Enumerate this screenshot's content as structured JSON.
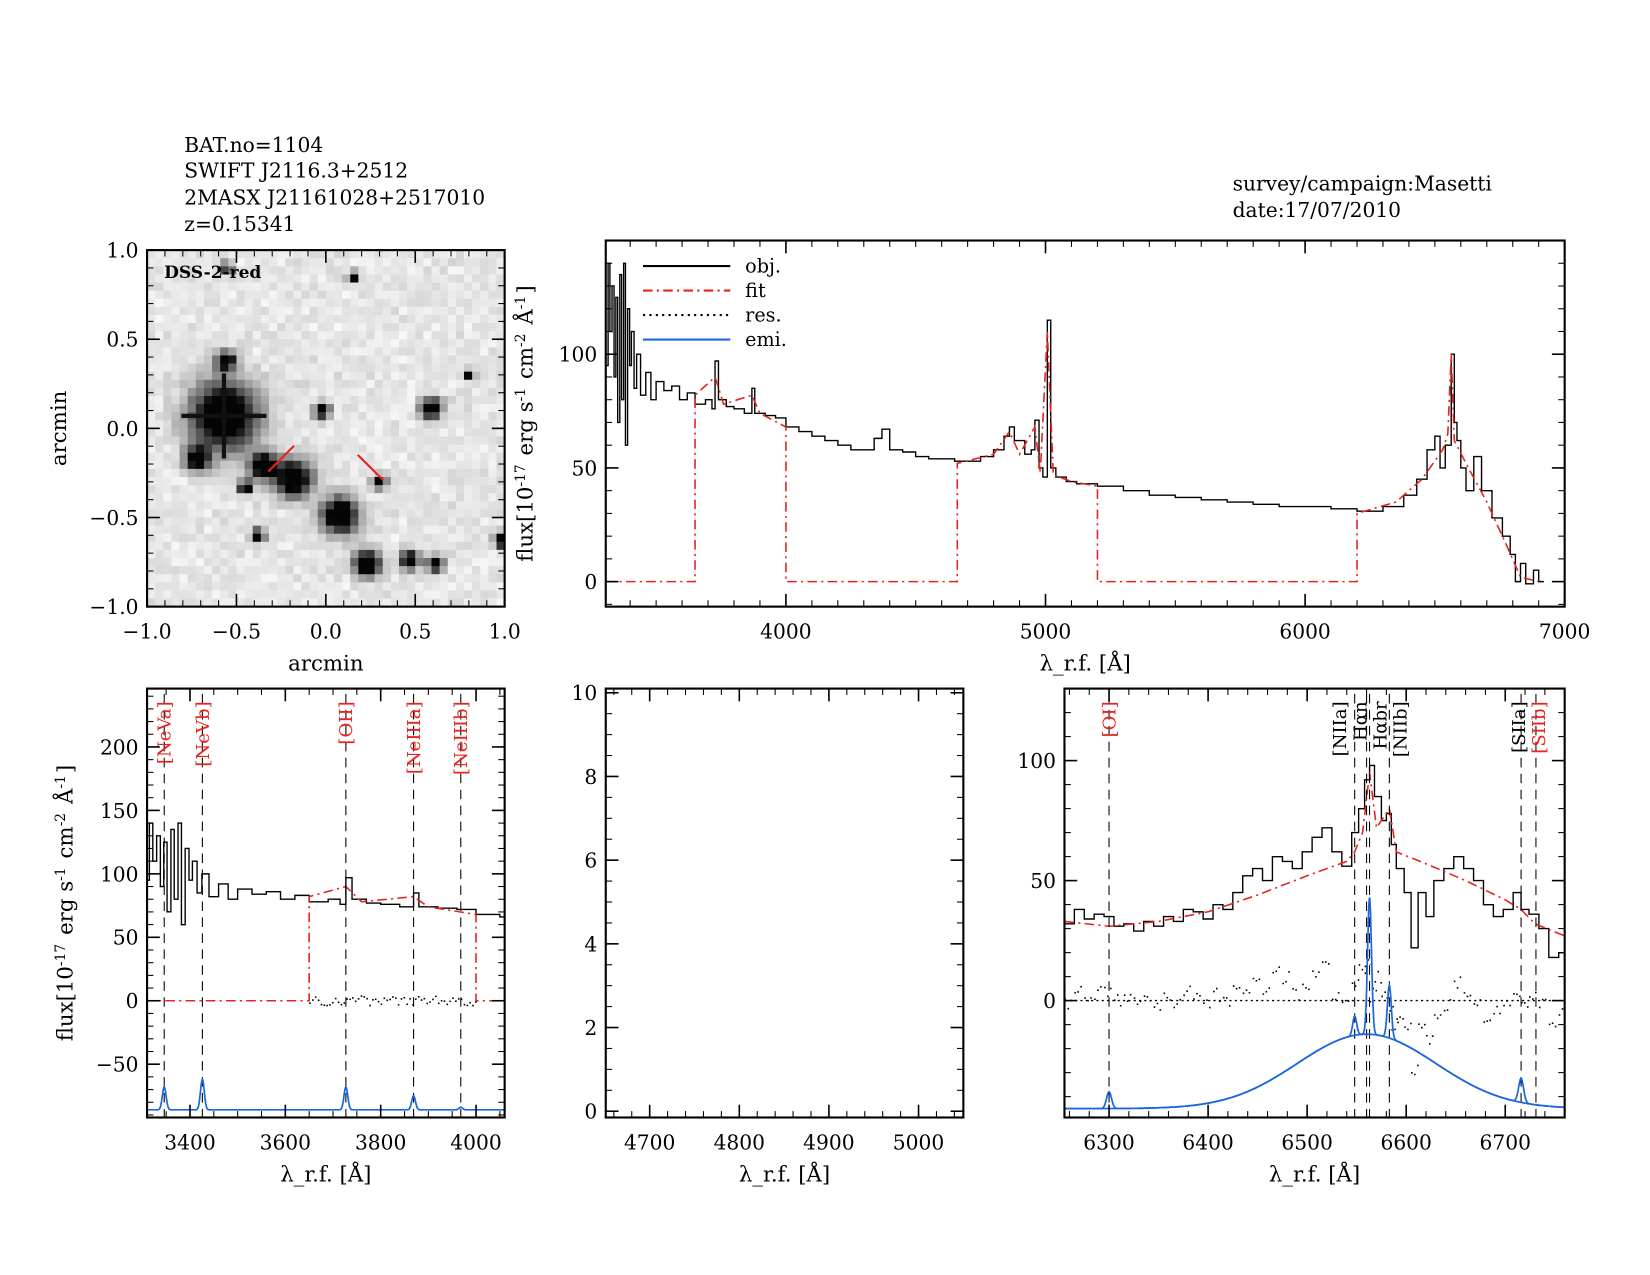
{
  "header": {
    "lines": [
      "BAT.no=1104",
      "SWIFT J2116.3+2512",
      "2MASX J21161028+2517010",
      "z=0.15341"
    ],
    "survey": "survey/campaign:Masetti",
    "date": "date:17/07/2010"
  },
  "colors": {
    "obj": "#000000",
    "fit": "#e8231f",
    "res": "#000000",
    "emi": "#1a66e0",
    "line_label_red": "#e8231f"
  },
  "chart_data": [
    {
      "type": "heatmap",
      "id": "image",
      "label": "DSS-2-red",
      "xlabel": "arcmin",
      "ylabel": "arcmin",
      "xlim": [
        -1.0,
        1.0
      ],
      "ylim": [
        -1.0,
        1.0
      ],
      "xticks": [
        -1.0,
        -0.5,
        0.0,
        0.5,
        1.0
      ],
      "yticks": [
        -1.0,
        -0.5,
        0.0,
        0.5,
        1.0
      ],
      "tick_labels": [
        "−1.0",
        "−0.5",
        "0.0",
        "0.5",
        "1.0"
      ],
      "stars": [
        [
          -0.57,
          0.07,
          0.13
        ],
        [
          -0.18,
          -0.28,
          0.07
        ],
        [
          -0.35,
          -0.21,
          0.05
        ],
        [
          0.08,
          -0.49,
          0.07
        ],
        [
          -0.72,
          -0.17,
          0.045
        ],
        [
          -0.56,
          0.38,
          0.035
        ],
        [
          0.59,
          0.11,
          0.04
        ],
        [
          0.23,
          -0.76,
          0.05
        ],
        [
          -0.02,
          0.1,
          0.03
        ],
        [
          0.47,
          -0.74,
          0.035
        ],
        [
          0.61,
          -0.76,
          0.03
        ],
        [
          0.3,
          -0.3,
          0.025
        ],
        [
          -0.38,
          -0.6,
          0.025
        ],
        [
          0.8,
          0.3,
          0.02
        ],
        [
          -0.55,
          0.9,
          0.02
        ],
        [
          0.98,
          -0.63,
          0.025
        ],
        [
          -0.45,
          -0.33,
          0.025
        ],
        [
          0.15,
          0.85,
          0.02
        ]
      ],
      "markers": [
        [
          -0.25,
          -0.17
        ],
        [
          0.25,
          -0.22
        ]
      ]
    },
    {
      "type": "line",
      "id": "full",
      "xlabel": "λ_r.f. [Å]",
      "ylabel": "flux[10^-17 erg s^-1 cm^-2 Å^-1]",
      "xlim": [
        3306,
        7000
      ],
      "ylim": [
        -11,
        150
      ],
      "xticks": [
        4000,
        5000,
        6000,
        7000
      ],
      "yticks": [
        0,
        50,
        100
      ],
      "legend": {
        "placement": "top-left",
        "entries": [
          "obj.",
          "fit",
          "res.",
          "emi."
        ]
      },
      "obj": [
        [
          3306,
          95
        ],
        [
          3315,
          140
        ],
        [
          3322,
          110
        ],
        [
          3330,
          130
        ],
        [
          3338,
          90
        ],
        [
          3345,
          125
        ],
        [
          3352,
          70
        ],
        [
          3360,
          135
        ],
        [
          3367,
          80
        ],
        [
          3375,
          140
        ],
        [
          3382,
          60
        ],
        [
          3390,
          120
        ],
        [
          3398,
          95
        ],
        [
          3405,
          110
        ],
        [
          3415,
          85
        ],
        [
          3425,
          100
        ],
        [
          3440,
          82
        ],
        [
          3460,
          92
        ],
        [
          3480,
          80
        ],
        [
          3500,
          88
        ],
        [
          3530,
          84
        ],
        [
          3560,
          86
        ],
        [
          3590,
          80
        ],
        [
          3620,
          83
        ],
        [
          3650,
          78
        ],
        [
          3690,
          80
        ],
        [
          3715,
          76
        ],
        [
          3727,
          97
        ],
        [
          3740,
          80
        ],
        [
          3770,
          77
        ],
        [
          3800,
          76
        ],
        [
          3840,
          74
        ],
        [
          3869,
          85
        ],
        [
          3880,
          74
        ],
        [
          3920,
          73
        ],
        [
          3960,
          72
        ],
        [
          4000,
          68
        ],
        [
          4050,
          66
        ],
        [
          4100,
          64
        ],
        [
          4150,
          62
        ],
        [
          4200,
          60
        ],
        [
          4250,
          58
        ],
        [
          4300,
          58
        ],
        [
          4340,
          63
        ],
        [
          4370,
          67
        ],
        [
          4400,
          58
        ],
        [
          4450,
          57
        ],
        [
          4500,
          55
        ],
        [
          4550,
          54
        ],
        [
          4600,
          54
        ],
        [
          4650,
          53
        ],
        [
          4700,
          53
        ],
        [
          4750,
          55
        ],
        [
          4800,
          58
        ],
        [
          4840,
          64
        ],
        [
          4861,
          68
        ],
        [
          4880,
          62
        ],
        [
          4920,
          56
        ],
        [
          4945,
          58
        ],
        [
          4959,
          71
        ],
        [
          4975,
          50
        ],
        [
          4990,
          46
        ],
        [
          5007,
          115
        ],
        [
          5020,
          50
        ],
        [
          5040,
          46
        ],
        [
          5080,
          44
        ],
        [
          5120,
          43
        ],
        [
          5200,
          42
        ],
        [
          5300,
          40
        ],
        [
          5400,
          38
        ],
        [
          5500,
          37
        ],
        [
          5600,
          36
        ],
        [
          5700,
          35
        ],
        [
          5800,
          34
        ],
        [
          5900,
          33
        ],
        [
          6000,
          33
        ],
        [
          6100,
          32
        ],
        [
          6200,
          31
        ],
        [
          6300,
          33
        ],
        [
          6380,
          38
        ],
        [
          6430,
          45
        ],
        [
          6470,
          58
        ],
        [
          6500,
          64
        ],
        [
          6520,
          50
        ],
        [
          6540,
          60
        ],
        [
          6563,
          100
        ],
        [
          6575,
          70
        ],
        [
          6585,
          62
        ],
        [
          6600,
          50
        ],
        [
          6620,
          40
        ],
        [
          6650,
          55
        ],
        [
          6680,
          40
        ],
        [
          6720,
          28
        ],
        [
          6760,
          20
        ],
        [
          6790,
          12
        ],
        [
          6810,
          0
        ],
        [
          6830,
          8
        ],
        [
          6850,
          -1
        ],
        [
          6880,
          5
        ],
        [
          6900,
          0
        ],
        [
          6920,
          0
        ]
      ],
      "fit": [
        [
          3306,
          0
        ],
        [
          3650,
          0
        ],
        [
          3650,
          82
        ],
        [
          3727,
          90
        ],
        [
          3760,
          78
        ],
        [
          3869,
          82
        ],
        [
          3900,
          74
        ],
        [
          4000,
          68
        ],
        [
          4000,
          0
        ],
        [
          4660,
          0
        ],
        [
          4660,
          52
        ],
        [
          4800,
          56
        ],
        [
          4861,
          66
        ],
        [
          4900,
          56
        ],
        [
          4959,
          68
        ],
        [
          4980,
          48
        ],
        [
          5007,
          110
        ],
        [
          5030,
          47
        ],
        [
          5100,
          44
        ],
        [
          5200,
          42
        ],
        [
          5200,
          0
        ],
        [
          6200,
          0
        ],
        [
          6200,
          30
        ],
        [
          6350,
          35
        ],
        [
          6450,
          45
        ],
        [
          6530,
          58
        ],
        [
          6550,
          65
        ],
        [
          6563,
          100
        ],
        [
          6575,
          62
        ],
        [
          6620,
          52
        ],
        [
          6700,
          35
        ],
        [
          6780,
          15
        ],
        [
          6830,
          2
        ],
        [
          6900,
          0
        ]
      ]
    },
    {
      "type": "line",
      "id": "blue",
      "xlabel": "λ_r.f. [Å]",
      "ylabel": "flux[10^-17 erg s^-1 cm^-2 Å^-1]",
      "xlim": [
        3310,
        4060
      ],
      "ylim": [
        -92,
        246
      ],
      "xticks": [
        3400,
        3600,
        3800,
        4000
      ],
      "yticks": [
        -50,
        0,
        50,
        100,
        150,
        200
      ],
      "tick_labels_y": [
        "−50",
        "0",
        "50",
        "100",
        "150",
        "200"
      ],
      "emi_baseline": -86,
      "lines": [
        {
          "label": "[NeVa]",
          "x": 3346,
          "amp": 18,
          "sigma": 4,
          "color": "red"
        },
        {
          "label": "[NeVb]",
          "x": 3426,
          "amp": 24,
          "sigma": 4,
          "color": "red"
        },
        {
          "label": "[OII]",
          "x": 3727,
          "amp": 18,
          "sigma": 4,
          "color": "red"
        },
        {
          "label": "[NeIIIa]",
          "x": 3869,
          "amp": 11,
          "sigma": 4,
          "color": "red"
        },
        {
          "label": "[NeIIIb]",
          "x": 3968,
          "amp": 2,
          "sigma": 4,
          "color": "red"
        }
      ]
    },
    {
      "type": "line",
      "id": "middle",
      "xlabel": "λ_r.f. [Å]",
      "xlim": [
        4651,
        5050
      ],
      "ylim": [
        -0.15,
        10.1
      ],
      "xticks": [
        4700,
        4800,
        4900,
        5000
      ],
      "yticks": [
        0,
        2,
        4,
        6,
        8,
        10
      ]
    },
    {
      "type": "line",
      "id": "red",
      "xlabel": "λ_r.f. [Å]",
      "xlim": [
        6255,
        6760
      ],
      "ylim": [
        -48.7,
        130
      ],
      "xticks": [
        6300,
        6400,
        6500,
        6600,
        6700
      ],
      "yticks": [
        0,
        50,
        100
      ],
      "emi_baseline": -45,
      "broad": {
        "x": 6560,
        "amp": 31,
        "sigma": 70
      },
      "lines": [
        {
          "label": "[OI]",
          "x": 6300,
          "amp": 7,
          "sigma": 2.5,
          "color": "red"
        },
        {
          "label": "[NIIa]",
          "x": 6548,
          "amp": 8,
          "sigma": 2,
          "color": "black"
        },
        {
          "label": "Hαn",
          "x": 6560,
          "amp": 0,
          "sigma": 2,
          "color": "black"
        },
        {
          "label": "Hαbr",
          "x": 6563,
          "amp": 57,
          "sigma": 2,
          "color": "black"
        },
        {
          "label": "[NIIb]",
          "x": 6583,
          "amp": 22,
          "sigma": 2,
          "color": "black"
        },
        {
          "label": "[SIIa]",
          "x": 6716,
          "amp": 10,
          "sigma": 2.5,
          "color": "black"
        },
        {
          "label": "[SIIb]",
          "x": 6731,
          "amp": 0,
          "sigma": 2.5,
          "color": "red"
        }
      ],
      "obj": [
        [
          6255,
          32
        ],
        [
          6265,
          38
        ],
        [
          6275,
          34
        ],
        [
          6285,
          36
        ],
        [
          6295,
          35
        ],
        [
          6305,
          31
        ],
        [
          6315,
          32
        ],
        [
          6325,
          29
        ],
        [
          6335,
          33
        ],
        [
          6345,
          31
        ],
        [
          6355,
          35
        ],
        [
          6365,
          33
        ],
        [
          6375,
          38
        ],
        [
          6385,
          37
        ],
        [
          6395,
          34
        ],
        [
          6405,
          40
        ],
        [
          6415,
          38
        ],
        [
          6425,
          45
        ],
        [
          6435,
          52
        ],
        [
          6445,
          55
        ],
        [
          6455,
          50
        ],
        [
          6465,
          60
        ],
        [
          6475,
          58
        ],
        [
          6485,
          55
        ],
        [
          6495,
          62
        ],
        [
          6505,
          68
        ],
        [
          6515,
          72
        ],
        [
          6525,
          62
        ],
        [
          6535,
          56
        ],
        [
          6545,
          70
        ],
        [
          6552,
          80
        ],
        [
          6558,
          92
        ],
        [
          6563,
          98
        ],
        [
          6568,
          85
        ],
        [
          6575,
          75
        ],
        [
          6580,
          78
        ],
        [
          6585,
          65
        ],
        [
          6590,
          55
        ],
        [
          6598,
          45
        ],
        [
          6605,
          22
        ],
        [
          6612,
          45
        ],
        [
          6620,
          35
        ],
        [
          6628,
          50
        ],
        [
          6638,
          55
        ],
        [
          6648,
          60
        ],
        [
          6658,
          55
        ],
        [
          6668,
          50
        ],
        [
          6678,
          40
        ],
        [
          6688,
          35
        ],
        [
          6698,
          38
        ],
        [
          6708,
          45
        ],
        [
          6716,
          38
        ],
        [
          6724,
          36
        ],
        [
          6734,
          30
        ],
        [
          6744,
          18
        ],
        [
          6754,
          20
        ],
        [
          6760,
          21
        ]
      ],
      "fit": [
        [
          6255,
          33
        ],
        [
          6300,
          31
        ],
        [
          6350,
          33
        ],
        [
          6400,
          37
        ],
        [
          6450,
          44
        ],
        [
          6500,
          52
        ],
        [
          6540,
          58
        ],
        [
          6548,
          62
        ],
        [
          6556,
          70
        ],
        [
          6563,
          95
        ],
        [
          6570,
          72
        ],
        [
          6583,
          80
        ],
        [
          6590,
          62
        ],
        [
          6620,
          57
        ],
        [
          6660,
          50
        ],
        [
          6700,
          42
        ],
        [
          6716,
          38
        ],
        [
          6730,
          32
        ],
        [
          6760,
          27
        ]
      ]
    }
  ]
}
